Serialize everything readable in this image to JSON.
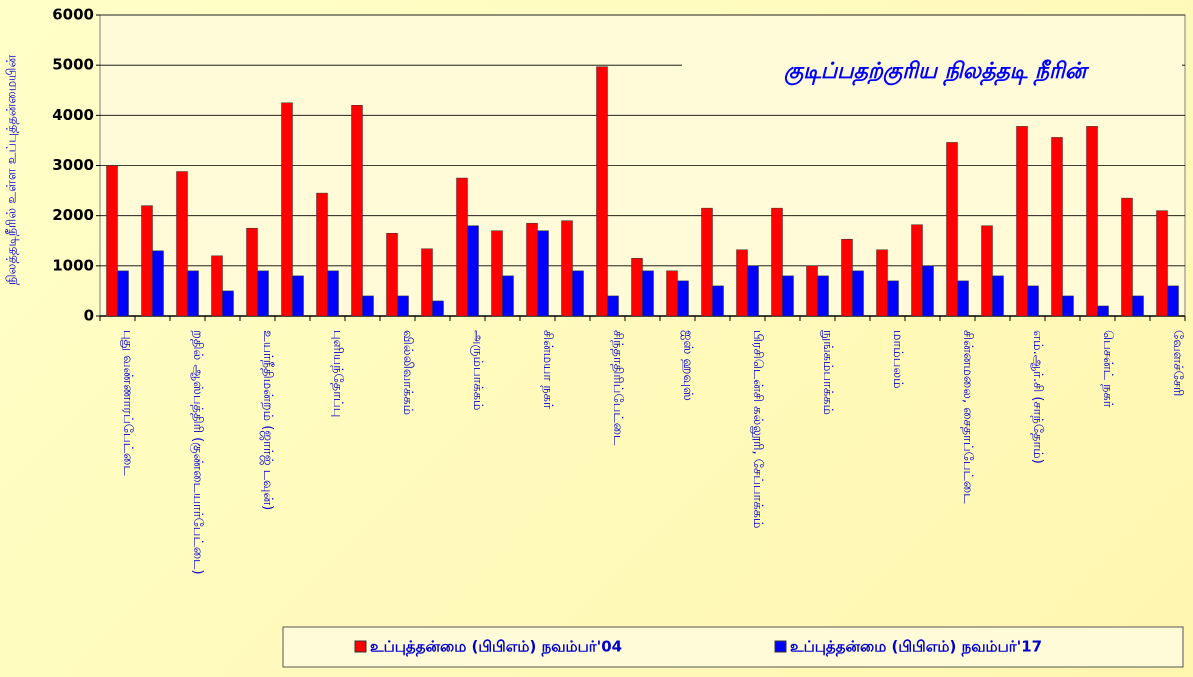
{
  "chart_data": {
    "type": "bar",
    "title": "குடிப்பதற்குரிய நிலத்தடி நீரின்",
    "y_label": "நிலத்தடிநீரில் உள்ள உப்புத்தன்மையின்",
    "categories": [
      "புது வண்ணாரப்பேட்டை",
      null,
      "றதில் ஆஸ்பத்திரி (குண்டையார்பேட்டை)",
      null,
      "உயர்நீதிமன்றம் (ஜார்ஜ் டவுன்)",
      null,
      "புளியந்தோப்பு",
      null,
      "வில்லிவாக்கம்",
      null,
      "அரும்பாக்கம்",
      null,
      "சின்மயா நகர்",
      null,
      "சிந்தாதிரிப்பேட்டை",
      null,
      "ஐஸ் ஹவுஸ்",
      null,
      "பிரசிடென்சி கல்லூரி, சேப்பாக்கம்",
      null,
      "நுங்கம்பாக்கம்",
      null,
      "மாம்பலம்",
      null,
      "சின்னமலை, சைதாப்பேட்டை",
      null,
      "எம்.ஆர்.சி (சாந்தோம்)",
      null,
      "பெசன்ட் நகர்",
      null,
      "வேளச்சேரி"
    ],
    "series": [
      {
        "name": "உப்புத்தன்மை (பிபிஎம்) நவம்பர்'04",
        "color": "#ff0000",
        "values": [
          3000,
          2200,
          2880,
          1200,
          1750,
          4250,
          2450,
          4200,
          1650,
          1340,
          2750,
          1700,
          1850,
          1900,
          4970,
          1150,
          900,
          2150,
          1320,
          2150,
          1000,
          1530,
          1320,
          1820,
          3460,
          1800,
          3780,
          3560,
          3780,
          2350,
          2100
        ]
      },
      {
        "name": "உப்புத்தன்மை (பிபிஎம்) நவம்பர்'17",
        "color": "#0000ff",
        "values": [
          900,
          1300,
          900,
          500,
          900,
          800,
          900,
          400,
          400,
          300,
          1800,
          800,
          1700,
          900,
          400,
          900,
          700,
          600,
          1000,
          800,
          800,
          900,
          700,
          1000,
          700,
          800,
          600,
          400,
          200,
          400,
          600
        ]
      }
    ],
    "ylim": [
      0,
      6000
    ],
    "yticks": [
      0,
      1000,
      2000,
      3000,
      4000,
      5000,
      6000
    ],
    "grid": true,
    "legend": "bottom"
  }
}
